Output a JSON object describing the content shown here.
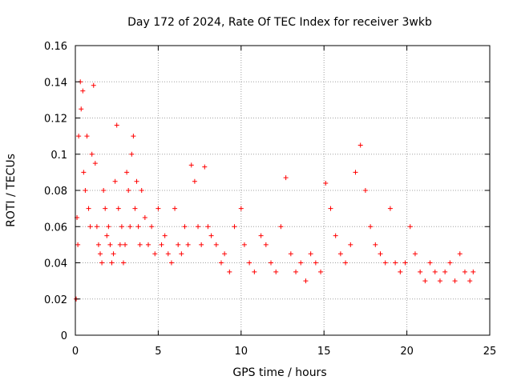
{
  "chart_data": {
    "type": "scatter",
    "title": "Day 172 of 2024, Rate Of TEC Index for receiver 3wkb",
    "xlabel": "GPS time / hours",
    "ylabel": "ROTI / TECUs",
    "xlim": [
      0,
      25
    ],
    "ylim": [
      0,
      0.16
    ],
    "xticks": [
      "0",
      "5",
      "10",
      "15",
      "20",
      "25"
    ],
    "yticks": [
      "0",
      "0.02",
      "0.04",
      "0.06",
      "0.08",
      "0.1",
      "0.12",
      "0.14",
      "0.16"
    ],
    "grid": true,
    "marker": "+",
    "color": "#ff0000",
    "series": [
      {
        "x": [
          0.05,
          0.1,
          0.15,
          0.2,
          0.3,
          0.35,
          0.45,
          0.5,
          0.6,
          0.7,
          0.8,
          0.9,
          1.0,
          1.1,
          1.2,
          1.3,
          1.4,
          1.5,
          1.6,
          1.7,
          1.8,
          1.9,
          2.0,
          2.1,
          2.2,
          2.3,
          2.4,
          2.5,
          2.6,
          2.7,
          2.8,
          2.9,
          3.0,
          3.1,
          3.2,
          3.3,
          3.4,
          3.5,
          3.6,
          3.7,
          3.8,
          3.9,
          4.0,
          4.2,
          4.4,
          4.6,
          4.8,
          5.0,
          5.2,
          5.4,
          5.6,
          5.8,
          6.0,
          6.2,
          6.4,
          6.6,
          6.8,
          7.0,
          7.2,
          7.4,
          7.6,
          7.8,
          8.0,
          8.2,
          8.5,
          8.8,
          9.0,
          9.3,
          9.6,
          10.0,
          10.2,
          10.5,
          10.8,
          11.2,
          11.5,
          11.8,
          12.1,
          12.4,
          12.7,
          13.0,
          13.3,
          13.6,
          13.9,
          14.2,
          14.5,
          14.8,
          15.1,
          15.4,
          15.7,
          16.0,
          16.3,
          16.6,
          16.9,
          17.2,
          17.5,
          17.8,
          18.1,
          18.4,
          18.7,
          19.0,
          19.3,
          19.6,
          19.9,
          20.2,
          20.5,
          20.8,
          21.1,
          21.4,
          21.7,
          22.0,
          22.3,
          22.6,
          22.9,
          23.2,
          23.5,
          23.8,
          24.0
        ],
        "y": [
          0.02,
          0.065,
          0.05,
          0.11,
          0.14,
          0.125,
          0.135,
          0.09,
          0.08,
          0.11,
          0.07,
          0.06,
          0.1,
          0.138,
          0.095,
          0.06,
          0.05,
          0.045,
          0.04,
          0.08,
          0.07,
          0.055,
          0.06,
          0.05,
          0.04,
          0.045,
          0.085,
          0.116,
          0.07,
          0.05,
          0.06,
          0.04,
          0.05,
          0.09,
          0.08,
          0.06,
          0.1,
          0.11,
          0.07,
          0.085,
          0.06,
          0.05,
          0.08,
          0.065,
          0.05,
          0.06,
          0.045,
          0.07,
          0.05,
          0.055,
          0.045,
          0.04,
          0.07,
          0.05,
          0.045,
          0.06,
          0.05,
          0.094,
          0.085,
          0.06,
          0.05,
          0.093,
          0.06,
          0.055,
          0.05,
          0.04,
          0.045,
          0.035,
          0.06,
          0.07,
          0.05,
          0.04,
          0.035,
          0.055,
          0.05,
          0.04,
          0.035,
          0.06,
          0.087,
          0.045,
          0.035,
          0.04,
          0.03,
          0.045,
          0.04,
          0.035,
          0.084,
          0.07,
          0.055,
          0.045,
          0.04,
          0.05,
          0.09,
          0.105,
          0.08,
          0.06,
          0.05,
          0.045,
          0.04,
          0.07,
          0.04,
          0.035,
          0.04,
          0.06,
          0.045,
          0.035,
          0.03,
          0.04,
          0.035,
          0.03,
          0.035,
          0.04,
          0.03,
          0.045,
          0.035,
          0.03,
          0.035
        ]
      }
    ]
  }
}
